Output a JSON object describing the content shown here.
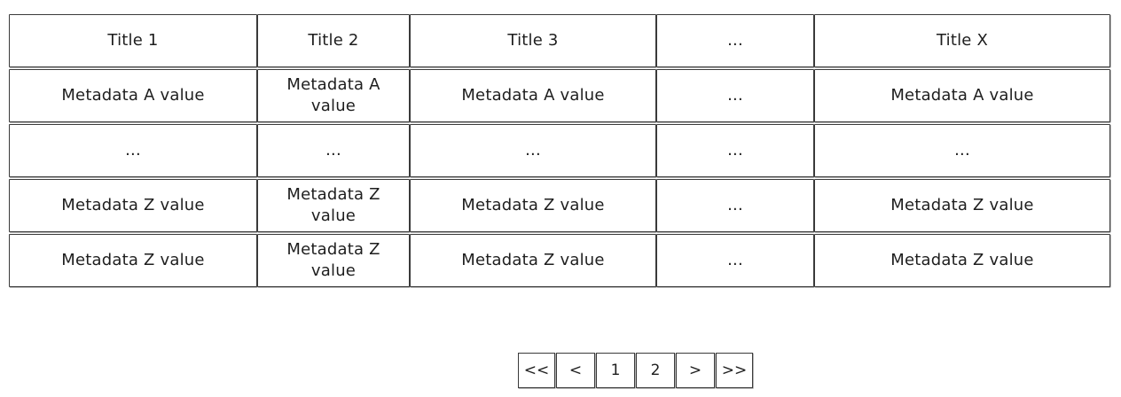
{
  "table": {
    "headers": [
      "Title 1",
      "Title 2",
      "Title 3",
      "...",
      "Title X"
    ],
    "rows": [
      [
        "Metadata A value",
        "Metadata A value",
        "Metadata A value",
        "...",
        "Metadata A value"
      ],
      [
        "...",
        "...",
        "...",
        "...",
        "..."
      ],
      [
        "Metadata Z value",
        "Metadata Z value",
        "Metadata Z value",
        "...",
        "Metadata Z value"
      ],
      [
        "Metadata Z value",
        "Metadata Z value",
        "Metadata Z value",
        "...",
        "Metadata Z value"
      ]
    ]
  },
  "pagination": {
    "first": "<<",
    "prev": "<",
    "pages": [
      "1",
      "2"
    ],
    "next": ">",
    "last": ">>"
  }
}
